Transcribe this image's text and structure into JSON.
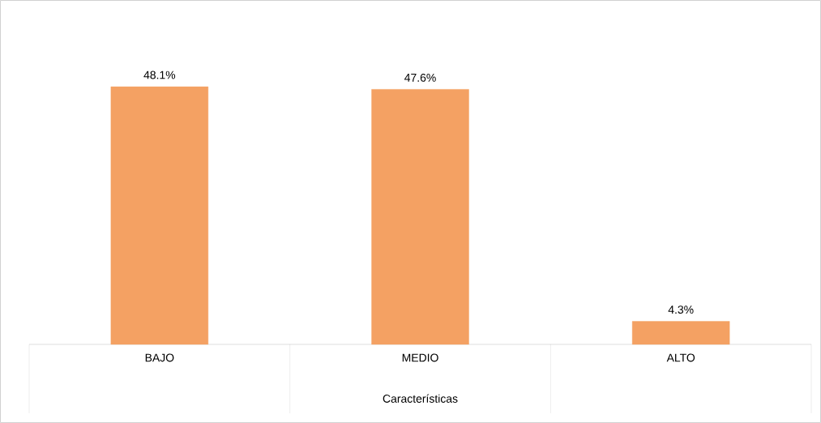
{
  "chart_data": {
    "type": "bar",
    "xlabel": "Características",
    "categories": [
      "BAJO",
      "MEDIO",
      "ALTO"
    ],
    "values": [
      48.1,
      47.6,
      4.3
    ],
    "value_labels": [
      "48.1%",
      "47.6%",
      "4.3%"
    ],
    "color": "#f4a163",
    "grid": false
  }
}
